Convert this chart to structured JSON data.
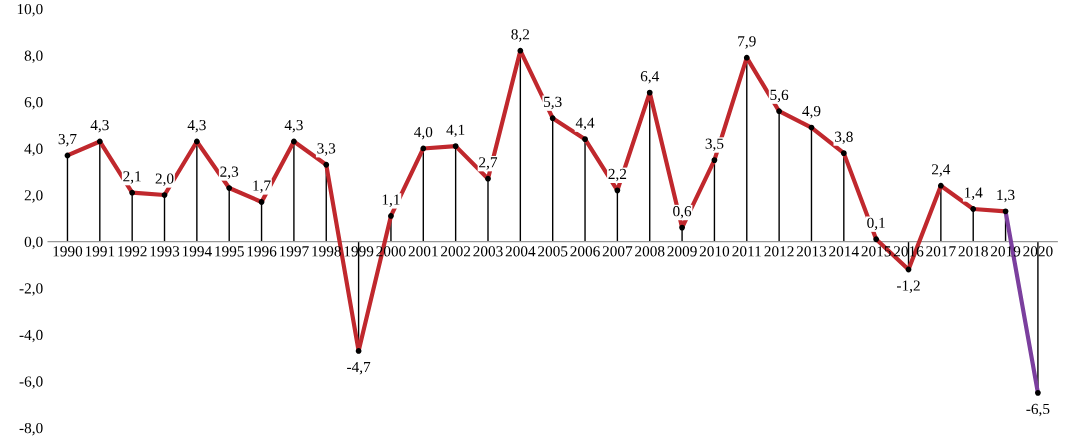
{
  "chart_data": {
    "type": "line",
    "categories": [
      "1990",
      "1991",
      "1992",
      "1993",
      "1994",
      "1995",
      "1996",
      "1997",
      "1998",
      "1999",
      "2000",
      "2001",
      "2002",
      "2003",
      "2004",
      "2005",
      "2006",
      "2007",
      "2008",
      "2009",
      "2010",
      "2011",
      "2012",
      "2013",
      "2014",
      "2015",
      "2016",
      "2017",
      "2018",
      "2019",
      "2020"
    ],
    "series": [
      {
        "type": "lollipop",
        "color": "#000000",
        "marker": "circle",
        "values": [
          3.7,
          4.3,
          2.1,
          2.0,
          4.3,
          2.3,
          1.7,
          4.3,
          3.3,
          -4.7,
          1.1,
          4.0,
          4.1,
          2.7,
          8.2,
          5.3,
          4.4,
          2.2,
          6.4,
          0.6,
          3.5,
          7.9,
          5.6,
          4.9,
          3.8,
          0.1,
          -1.2,
          2.4,
          1.4,
          1.3,
          -6.5
        ],
        "value_labels": [
          "3,7",
          "4,3",
          "2,1",
          "2,0",
          "4,3",
          "2,3",
          "1,7",
          "4,3",
          "3,3",
          "-4,7",
          "1,1",
          "4,0",
          "4,1",
          "2,7",
          "8,2",
          "5,3",
          "4,4",
          "2,2",
          "6,4",
          "0,6",
          "3,5",
          "7,9",
          "5,6",
          "4,9",
          "3,8",
          "0,1",
          "-1,2",
          "2,4",
          "1,4",
          "1,3",
          "-6,5"
        ]
      },
      {
        "color": "#c0282d",
        "values": [
          3.7,
          4.3,
          2.1,
          2.0,
          4.3,
          2.3,
          1.7,
          4.3,
          3.3,
          -4.7,
          1.1,
          4.0,
          4.1,
          2.7,
          8.2,
          5.3,
          4.4,
          2.2,
          6.4,
          0.6,
          3.5,
          7.9,
          5.6,
          4.9,
          3.8,
          0.1,
          -1.2,
          2.4,
          1.4,
          1.3,
          null
        ]
      },
      {
        "color": "#7b3f9e",
        "values": [
          null,
          null,
          null,
          null,
          null,
          null,
          null,
          null,
          null,
          null,
          null,
          null,
          null,
          null,
          null,
          null,
          null,
          null,
          null,
          null,
          null,
          null,
          null,
          null,
          null,
          null,
          null,
          null,
          null,
          1.3,
          -6.5
        ]
      }
    ],
    "ylim": [
      -8,
      10
    ],
    "yticks": [
      {
        "value": -8,
        "label": "-8,0"
      },
      {
        "value": -6,
        "label": "-6,0"
      },
      {
        "value": -4,
        "label": "-4,0"
      },
      {
        "value": -2,
        "label": "-2,0"
      },
      {
        "value": 0,
        "label": "0,0"
      },
      {
        "value": 2,
        "label": "2,0"
      },
      {
        "value": 4,
        "label": "4,0"
      },
      {
        "value": 6,
        "label": "6,0"
      },
      {
        "value": 8,
        "label": "8,0"
      },
      {
        "value": 10,
        "label": "10,0"
      }
    ],
    "grid": false,
    "legend": false
  }
}
